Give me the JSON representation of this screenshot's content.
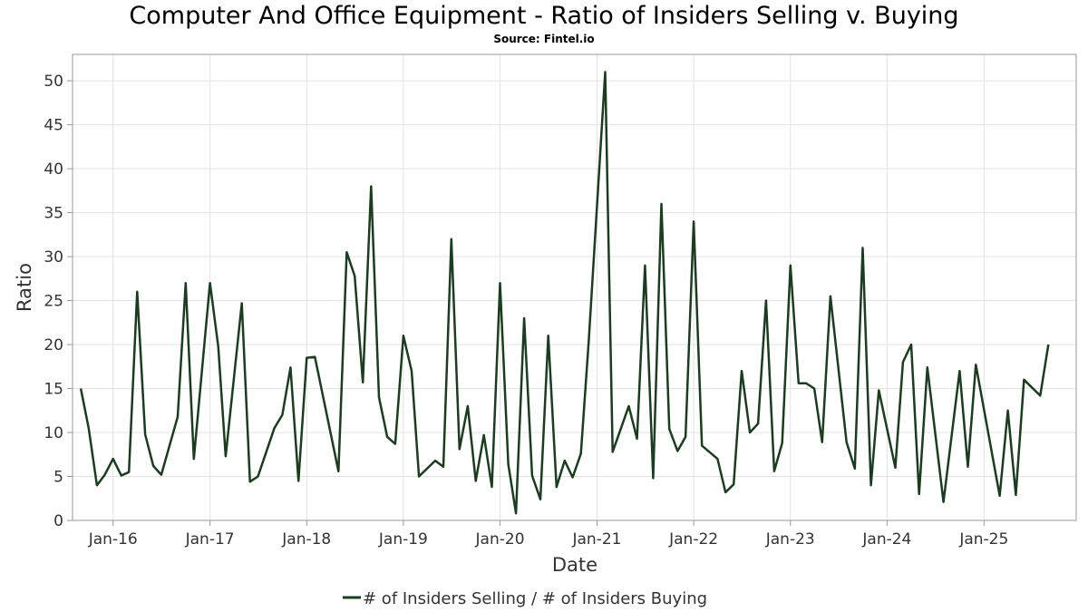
{
  "chart_data": {
    "type": "line",
    "title": "Computer And Office Equipment - Ratio of Insiders Selling v. Buying",
    "subtitle": "Source: Fintel.io",
    "xlabel": "Date",
    "ylabel": "Ratio",
    "ylim": [
      0,
      53
    ],
    "xlim": [
      "2015-08-01",
      "2025-12-15"
    ],
    "yticks": [
      0,
      5,
      10,
      15,
      20,
      25,
      30,
      35,
      40,
      45,
      50
    ],
    "xticks": [
      {
        "date": "2016-01-01",
        "label": "Jan-16"
      },
      {
        "date": "2017-01-01",
        "label": "Jan-17"
      },
      {
        "date": "2018-01-01",
        "label": "Jan-18"
      },
      {
        "date": "2019-01-01",
        "label": "Jan-19"
      },
      {
        "date": "2020-01-01",
        "label": "Jan-20"
      },
      {
        "date": "2021-01-01",
        "label": "Jan-21"
      },
      {
        "date": "2022-01-01",
        "label": "Jan-22"
      },
      {
        "date": "2023-01-01",
        "label": "Jan-23"
      },
      {
        "date": "2024-01-01",
        "label": "Jan-24"
      },
      {
        "date": "2025-01-01",
        "label": "Jan-25"
      }
    ],
    "grid": true,
    "legend_position": "bottom",
    "line_color": "#1a3d1f",
    "series": [
      {
        "name": "# of Insiders Selling / # of Insiders Buying",
        "x": [
          "2015-09-01",
          "2015-10-01",
          "2015-11-01",
          "2015-12-01",
          "2016-01-01",
          "2016-02-01",
          "2016-03-01",
          "2016-04-01",
          "2016-05-01",
          "2016-06-01",
          "2016-07-01",
          "2016-08-01",
          "2016-09-01",
          "2016-10-01",
          "2016-11-01",
          "2016-12-01",
          "2017-01-01",
          "2017-02-01",
          "2017-03-01",
          "2017-04-01",
          "2017-05-01",
          "2017-06-01",
          "2017-07-01",
          "2017-08-01",
          "2017-09-01",
          "2017-10-01",
          "2017-11-01",
          "2017-12-01",
          "2018-01-01",
          "2018-02-01",
          "2018-03-01",
          "2018-04-01",
          "2018-05-01",
          "2018-06-01",
          "2018-07-01",
          "2018-08-01",
          "2018-09-01",
          "2018-10-01",
          "2018-11-01",
          "2018-12-01",
          "2019-01-01",
          "2019-02-01",
          "2019-03-01",
          "2019-04-01",
          "2019-05-01",
          "2019-06-01",
          "2019-07-01",
          "2019-08-01",
          "2019-09-01",
          "2019-10-01",
          "2019-11-01",
          "2019-12-01",
          "2020-01-01",
          "2020-02-01",
          "2020-03-01",
          "2020-04-01",
          "2020-05-01",
          "2020-06-01",
          "2020-07-01",
          "2020-08-01",
          "2020-09-01",
          "2020-10-01",
          "2020-11-01",
          "2020-12-01",
          "2021-01-01",
          "2021-02-01",
          "2021-03-01",
          "2021-04-01",
          "2021-05-01",
          "2021-06-01",
          "2021-07-01",
          "2021-08-01",
          "2021-09-01",
          "2021-10-01",
          "2021-11-01",
          "2021-12-01",
          "2022-01-01",
          "2022-02-01",
          "2022-03-01",
          "2022-04-01",
          "2022-05-01",
          "2022-06-01",
          "2022-07-01",
          "2022-08-01",
          "2022-09-01",
          "2022-10-01",
          "2022-11-01",
          "2022-12-01",
          "2023-01-01",
          "2023-02-01",
          "2023-03-01",
          "2023-04-01",
          "2023-05-01",
          "2023-06-01",
          "2023-07-01",
          "2023-08-01",
          "2023-09-01",
          "2023-10-01",
          "2023-11-01",
          "2023-12-01",
          "2024-01-01",
          "2024-02-01",
          "2024-03-01",
          "2024-04-01",
          "2024-05-01",
          "2024-06-01",
          "2024-07-01",
          "2024-08-01",
          "2024-09-01",
          "2024-10-01",
          "2024-11-01",
          "2024-12-01",
          "2025-01-01",
          "2025-02-01",
          "2025-03-01",
          "2025-04-01",
          "2025-05-01",
          "2025-06-01",
          "2025-07-01",
          "2025-08-01",
          "2025-09-01"
        ],
        "values": [
          15.0,
          10.5,
          4.0,
          5.2,
          7.0,
          5.1,
          5.5,
          26.0,
          9.8,
          6.2,
          5.2,
          null,
          11.8,
          27.0,
          7.0,
          null,
          27.0,
          19.8,
          7.3,
          null,
          24.7,
          4.4,
          5.0,
          null,
          10.5,
          12.0,
          17.4,
          4.5,
          18.5,
          18.6,
          null,
          null,
          5.6,
          30.5,
          27.8,
          15.7,
          38.0,
          14.0,
          9.5,
          8.7,
          21.0,
          17.0,
          5.0,
          null,
          6.8,
          6.1,
          32.0,
          8.1,
          13.0,
          4.5,
          9.7,
          3.8,
          27.0,
          6.4,
          0.8,
          23.0,
          5.1,
          2.4,
          21.0,
          3.8,
          6.8,
          4.9,
          7.6,
          20.5,
          null,
          51.0,
          7.8,
          null,
          13.0,
          9.3,
          29.0,
          4.8,
          36.0,
          10.4,
          7.9,
          9.5,
          34.0,
          8.5,
          null,
          7.0,
          3.2,
          4.1,
          17.0,
          10.0,
          11.0,
          25.0,
          5.6,
          8.8,
          29.0,
          15.6,
          15.6,
          15.0,
          8.9,
          25.5,
          null,
          8.9,
          5.9,
          31.0,
          4.0,
          14.8,
          null,
          6.0,
          18.0,
          20.0,
          3.0,
          17.4,
          null,
          2.1,
          null,
          17.0,
          6.1,
          17.7,
          null,
          null,
          2.8,
          12.5,
          2.9,
          16.0,
          null,
          14.2,
          20.0
        ]
      }
    ]
  }
}
